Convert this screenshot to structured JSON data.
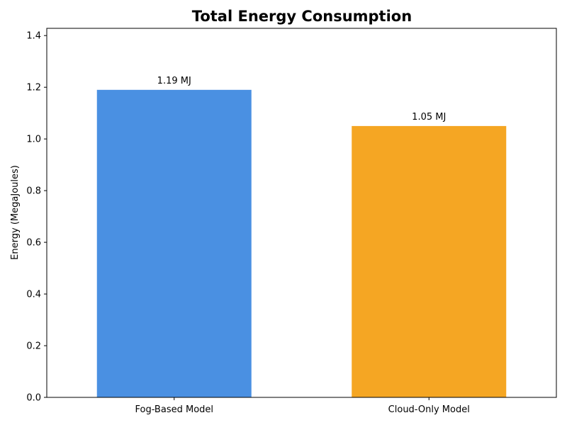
{
  "chart_data": {
    "type": "bar",
    "title": "Total Energy Consumption",
    "xlabel": "",
    "ylabel": "Energy (MegaJoules)",
    "categories": [
      "Fog-Based Model",
      "Cloud-Only Model"
    ],
    "values": [
      1.19,
      1.05
    ],
    "data_labels": [
      "1.19 MJ",
      "1.05 MJ"
    ],
    "colors": [
      "#4a90e2",
      "#f5a623"
    ],
    "ylim": [
      0,
      1.428
    ],
    "yticks": [
      0.0,
      0.2,
      0.4,
      0.6,
      0.8,
      1.0,
      1.2,
      1.4
    ],
    "ytick_labels": [
      "0.0",
      "0.2",
      "0.4",
      "0.6",
      "0.8",
      "1.0",
      "1.2",
      "1.4"
    ],
    "grid": false,
    "legend": "none"
  }
}
